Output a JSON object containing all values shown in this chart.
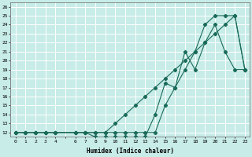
{
  "title": "",
  "xlabel": "Humidex (Indice chaleur)",
  "bg_color": "#c8ece8",
  "line_color": "#1a6b5a",
  "grid_color": "#ffffff",
  "xlim": [
    -0.5,
    23.5
  ],
  "ylim": [
    11.5,
    26.5
  ],
  "xticks": [
    0,
    1,
    2,
    3,
    4,
    5,
    6,
    7,
    8,
    9,
    10,
    11,
    12,
    13,
    14,
    15,
    16,
    17,
    18,
    19,
    20,
    21,
    22,
    23
  ],
  "xtick_labels": [
    "0",
    "1",
    "2",
    "3",
    "4",
    "",
    "6",
    "7",
    "8",
    "9",
    "10",
    "11",
    "12",
    "13",
    "14",
    "15",
    "16",
    "17",
    "18",
    "19",
    "20",
    "21",
    "22",
    "23"
  ],
  "yticks": [
    12,
    13,
    14,
    15,
    16,
    17,
    18,
    19,
    20,
    21,
    22,
    23,
    24,
    25,
    26
  ],
  "curve1_x": [
    0,
    1,
    2,
    3,
    4,
    6,
    7,
    8,
    9,
    10,
    11,
    12,
    13,
    14,
    15,
    16,
    17,
    18,
    19,
    20,
    21,
    22,
    23
  ],
  "curve1_y": [
    12,
    12,
    12,
    12,
    12,
    12,
    12,
    12,
    12,
    13,
    14,
    15,
    16,
    17,
    18,
    19,
    20,
    21,
    22,
    23,
    24,
    25,
    19
  ],
  "curve2_x": [
    0,
    1,
    2,
    3,
    4,
    6,
    7,
    8,
    9,
    10,
    11,
    12,
    13,
    14,
    15,
    16,
    17,
    18,
    19,
    20,
    21,
    22,
    23
  ],
  "curve2_y": [
    12,
    12,
    12,
    12,
    12,
    12,
    12,
    12,
    12,
    12,
    12,
    12,
    12,
    12,
    15,
    17,
    19,
    21,
    24,
    25,
    25,
    25,
    19
  ],
  "curve3_x": [
    0,
    1,
    2,
    3,
    4,
    6,
    7,
    8,
    9,
    10,
    11,
    12,
    13,
    14,
    15,
    16,
    17,
    18,
    19,
    20,
    21,
    22,
    23
  ],
  "curve3_y": [
    12,
    12,
    12,
    12,
    12,
    12,
    12,
    11.5,
    11.5,
    11.5,
    11.5,
    11.5,
    11.5,
    14,
    17.5,
    17,
    21,
    19,
    22,
    24,
    21,
    19,
    19
  ]
}
